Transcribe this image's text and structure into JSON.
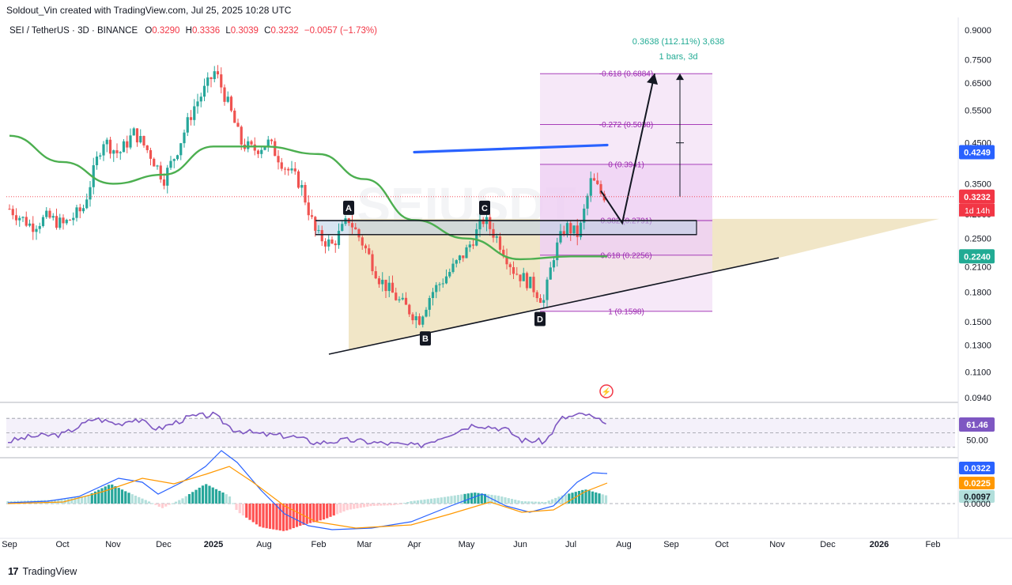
{
  "header": {
    "attribution": "Soldout_Vin created with TradingView.com, Jul 25, 2025 10:28 UTC"
  },
  "legend": {
    "symbol": "SEI / TetherUS · 3D · BINANCE",
    "open_label": "O",
    "open": "0.3290",
    "high_label": "H",
    "high": "0.3336",
    "low_label": "L",
    "low": "0.3039",
    "close_label": "C",
    "close": "0.3232",
    "change": "−0.0057 (−1.73%)"
  },
  "watermark": "SEIUSDT",
  "colors": {
    "up": "#26a69a",
    "down": "#ef5350",
    "ma": "#4caf50",
    "rsi": "#7e57c2",
    "fib": "#9c27b0",
    "fib_zone": "#f3e0f5",
    "triangle": "#efe2bd",
    "target_line": "#2962ff",
    "macd_line": "#2962ff",
    "signal_line": "#ff9800",
    "price_label": "#f23645"
  },
  "chart_data": [
    {
      "type": "line",
      "title": "SEI / TetherUS · 3D · BINANCE",
      "scale": "log",
      "ylim": [
        0.094,
        0.9
      ],
      "y_ticks": [
        "0.9000",
        "0.7500",
        "0.6500",
        "0.5500",
        "0.4500",
        "0.3500",
        "0.2900",
        "0.2500",
        "0.2100",
        "0.1800",
        "0.1500",
        "0.1300",
        "0.1100",
        "0.0940"
      ],
      "x_ticks": [
        "Aug",
        "Sep",
        "Oct",
        "Nov",
        "Dec",
        "2025",
        "Feb",
        "Mar",
        "Apr",
        "May",
        "Jun",
        "Jul",
        "Aug",
        "Sep",
        "Oct",
        "Nov",
        "Dec",
        "2026",
        "Feb"
      ],
      "series": [
        {
          "name": "SEIUSDT",
          "x": [
            "Aug",
            "Sep",
            "Oct",
            "Nov",
            "Dec",
            "2025",
            "Feb",
            "Mar",
            "Apr",
            "May",
            "Jun",
            "Jul"
          ],
          "values": [
            0.3,
            0.29,
            0.47,
            0.42,
            0.68,
            0.45,
            0.3,
            0.25,
            0.15,
            0.27,
            0.18,
            0.32
          ]
        },
        {
          "name": "MA",
          "x": [
            "Aug",
            "Sep",
            "Oct",
            "Nov",
            "Dec",
            "2025",
            "Feb",
            "Mar",
            "Apr",
            "May",
            "Jun",
            "Jul"
          ],
          "values": [
            0.47,
            0.4,
            0.35,
            0.37,
            0.44,
            0.44,
            0.42,
            0.36,
            0.28,
            0.25,
            0.22,
            0.224
          ]
        }
      ],
      "price_labels": [
        {
          "value": "0.4249",
          "color": "#2962ff"
        },
        {
          "value": "0.3232",
          "color": "#f23645",
          "countdown": "1d 14h"
        },
        {
          "value": "0.2240",
          "color": "#22ab94"
        }
      ],
      "fib_levels": [
        {
          "label": "-0.618 (0.6884)",
          "value": 0.6884
        },
        {
          "label": "-0.272 (0.5038)",
          "value": 0.5038
        },
        {
          "label": "0 (0.3941)",
          "value": 0.3941
        },
        {
          "label": "0.382 (0.2791)",
          "value": 0.2791
        },
        {
          "label": "0.618 (0.2256)",
          "value": 0.2256
        },
        {
          "label": "1 (0.1598)",
          "value": 0.1598
        }
      ],
      "pattern_points": [
        "A",
        "B",
        "C",
        "D"
      ],
      "measure": {
        "text1": "0.3638 (112.11%) 3,638",
        "text2": "1 bars, 3d"
      }
    },
    {
      "type": "line",
      "title": "RSI",
      "ylim": [
        0,
        100
      ],
      "series": [
        {
          "name": "RSI",
          "x": [
            "Aug",
            "Oct",
            "Dec",
            "Feb",
            "Apr",
            "May",
            "Jun",
            "Jul"
          ],
          "values": [
            38,
            68,
            75,
            38,
            32,
            58,
            38,
            61.46
          ]
        }
      ],
      "price_labels": [
        {
          "value": "61.46"
        },
        {
          "value": "50.00"
        }
      ]
    },
    {
      "type": "bar",
      "title": "MACD",
      "series": [
        {
          "name": "MACD",
          "values": [
            0.0322
          ]
        },
        {
          "name": "Signal",
          "values": [
            0.0225
          ]
        },
        {
          "name": "Histogram",
          "values": [
            0.0097
          ]
        }
      ],
      "price_labels": [
        {
          "value": "0.0322",
          "color": "#2962ff"
        },
        {
          "value": "0.0225",
          "color": "#ff9800"
        },
        {
          "value": "0.0097",
          "color": "#b2dfdb"
        },
        {
          "value": "0.0000"
        }
      ]
    }
  ],
  "footer": {
    "brand": "TradingView"
  }
}
